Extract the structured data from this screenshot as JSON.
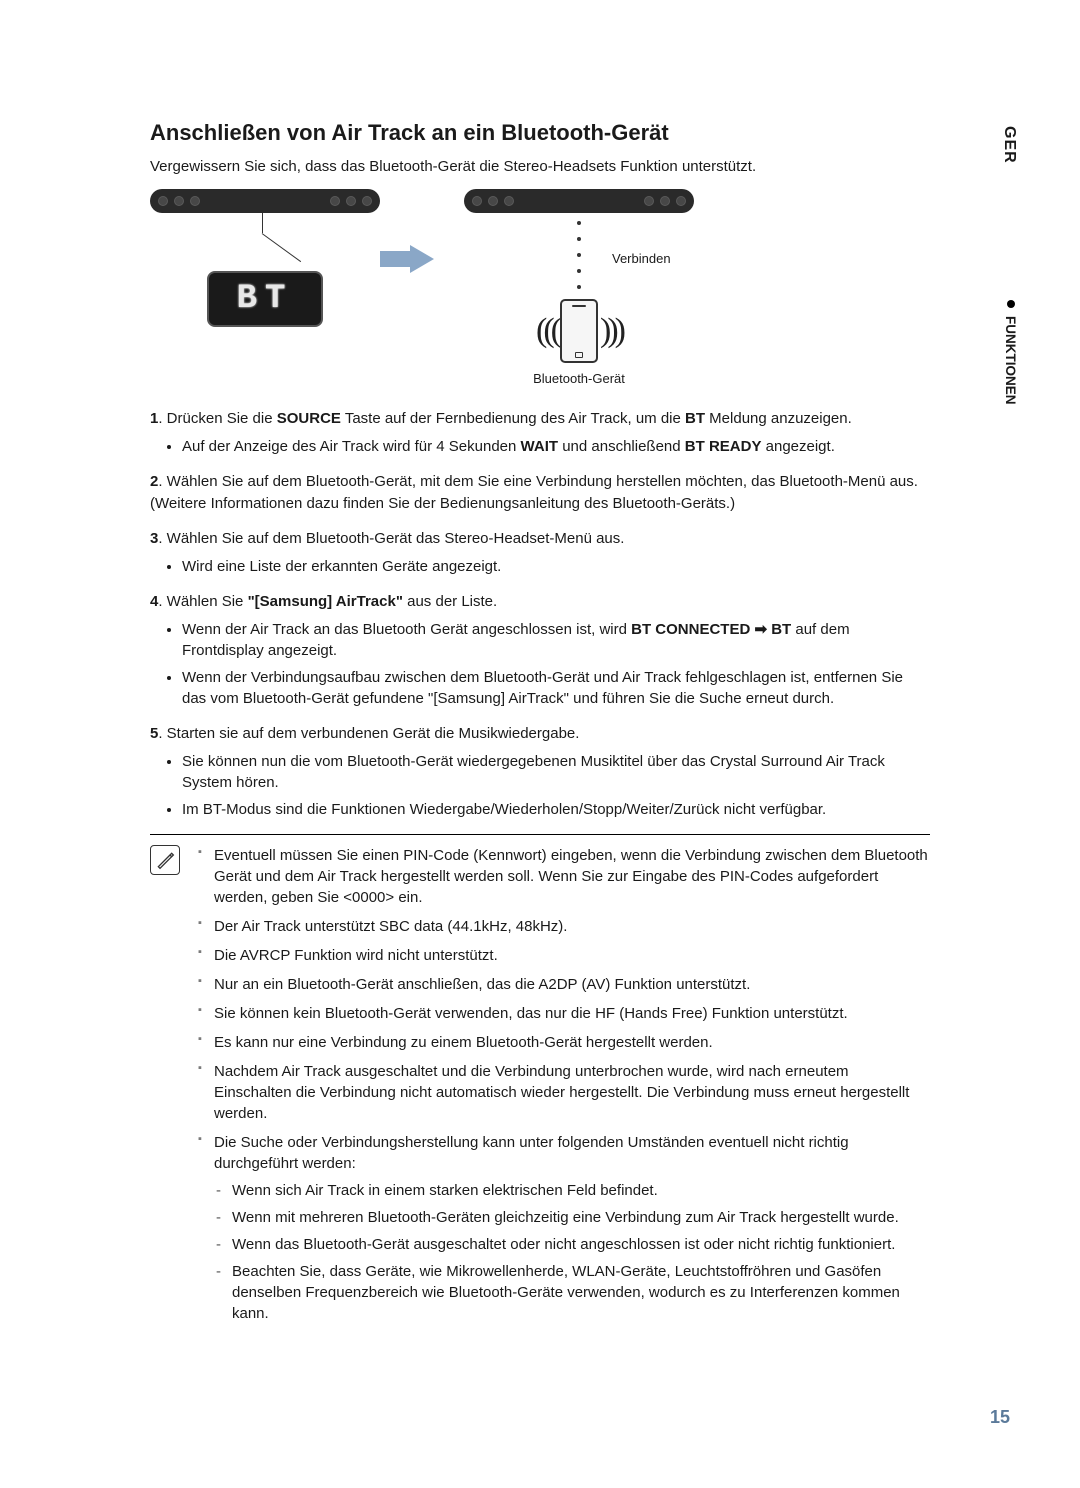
{
  "title": "Anschließen von Air Track an ein Bluetooth-Gerät",
  "intro": "Vergewissern Sie sich, dass das Bluetooth-Gerät die Stereo-Headsets Funktion unterstützt.",
  "diagram": {
    "display_text": "BT",
    "connect_label": "Verbinden",
    "device_label": "Bluetooth-Gerät",
    "arrow_color": "#8aa7c7",
    "soundbar_bg": "#2a2a2a",
    "display_bg": "#1a1a1a",
    "display_fg": "#e8e8e8"
  },
  "steps": [
    {
      "num": "1",
      "html": ". Drücken Sie die <b>SOURCE</b> Taste auf der Fernbedienung des Air Track, um die <b>BT</b> Meldung anzuzeigen.",
      "sub": [
        "Auf der Anzeige des Air Track wird für 4 Sekunden <b>WAIT</b> und anschließend <b>BT READY</b> angezeigt."
      ]
    },
    {
      "num": "2",
      "html": ". Wählen Sie auf dem Bluetooth-Gerät, mit dem Sie eine Verbindung herstellen möchten, das Bluetooth-Menü aus. (Weitere Informationen dazu finden Sie der Bedienungsanleitung des Bluetooth-Geräts.)",
      "sub": []
    },
    {
      "num": "3",
      "html": ". Wählen Sie auf dem Bluetooth-Gerät das Stereo-Headset-Menü aus.",
      "sub": [
        "Wird eine Liste der erkannten Geräte angezeigt."
      ]
    },
    {
      "num": "4",
      "html": ". Wählen Sie <b>\"[Samsung] AirTrack\"</b> aus der Liste.",
      "sub": [
        "Wenn der Air Track an das Bluetooth Gerät angeschlossen ist, wird <b>BT CONNECTED ➡ BT</b> auf dem Frontdisplay angezeigt.",
        "Wenn der Verbindungsaufbau zwischen dem Bluetooth-Gerät und Air Track fehlgeschlagen ist, entfernen Sie das vom Bluetooth-Gerät gefundene \"[Samsung] AirTrack\" und führen Sie die Suche erneut durch."
      ]
    },
    {
      "num": "5",
      "html": ". Starten sie auf dem verbundenen Gerät die Musikwiedergabe.",
      "sub": [
        "Sie können nun die vom Bluetooth-Gerät wiedergegebenen Musiktitel  über das Crystal Surround Air Track System hören.",
        "Im BT-Modus sind die Funktionen Wiedergabe/Wiederholen/Stopp/Weiter/Zurück nicht verfügbar."
      ]
    }
  ],
  "notes": [
    "Eventuell müssen Sie einen PIN-Code (Kennwort) eingeben, wenn die Verbindung zwischen dem Bluetooth Gerät und dem Air Track hergestellt werden soll. Wenn Sie zur Eingabe des PIN-Codes aufgefordert werden, geben Sie <0000> ein.",
    "Der Air Track unterstützt SBC data (44.1kHz, 48kHz).",
    "Die AVRCP Funktion wird nicht unterstützt.",
    "Nur an ein Bluetooth-Gerät anschließen, das die A2DP (AV) Funktion unterstützt.",
    "Sie können kein Bluetooth-Gerät verwenden, das nur die HF (Hands Free) Funktion unterstützt.",
    "Es kann nur eine Verbindung zu einem Bluetooth-Gerät hergestellt werden.",
    "Nachdem Air Track ausgeschaltet und die Verbindung unterbrochen wurde, wird nach erneutem Einschalten die Verbindung nicht automatisch wieder hergestellt. Die Verbindung muss erneut hergestellt werden."
  ],
  "note_last": {
    "text": "Die Suche oder Verbindungsherstellung kann unter folgenden Umständen eventuell nicht richtig durchgeführt werden:",
    "dashes": [
      "Wenn sich Air Track in einem starken elektrischen Feld befindet.",
      "Wenn mit mehreren Bluetooth-Geräten gleichzeitig eine Verbindung zum Air Track hergestellt wurde.",
      "Wenn das Bluetooth-Gerät ausgeschaltet oder nicht angeschlossen ist oder nicht richtig funktioniert.",
      "Beachten Sie, dass Geräte, wie Mikrowellenherde, WLAN-Geräte, Leuchtstoffröhren und Gasöfen denselben Frequenzbereich wie Bluetooth-Geräte verwenden, wodurch es zu Interferenzen kommen kann."
    ]
  },
  "side": {
    "lang": "GER",
    "section": "FUNKTIONEN"
  },
  "page_number": "15",
  "colors": {
    "accent": "#5b7a9a",
    "text": "#1a1a1a"
  }
}
